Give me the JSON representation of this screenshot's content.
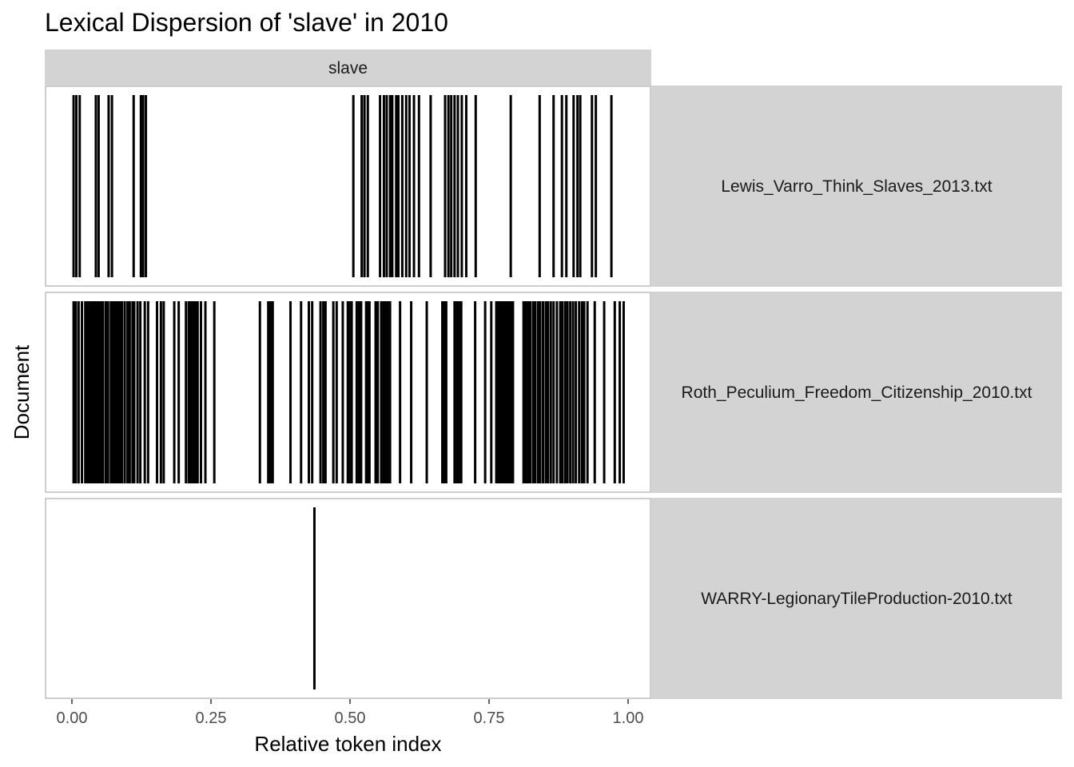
{
  "chart_data": {
    "type": "lexical-dispersion",
    "title": "Lexical Dispersion of 'slave' in 2010",
    "xlabel": "Relative token index",
    "ylabel": "Document",
    "facet_column": "slave",
    "xlim": [
      0,
      1
    ],
    "x_ticks": [
      0,
      0.25,
      0.5,
      0.75,
      1
    ],
    "x_tick_labels": [
      "0.00",
      "0.25",
      "0.50",
      "0.75",
      "1.00"
    ],
    "grid": false,
    "mark_color": "#000000",
    "strip_color": "#d3d3d3",
    "panel_border_color": "#bdbdbd",
    "documents": [
      {
        "name": "Lewis_Varro_Think_Slaves_2013.txt",
        "positions": [
          0.003,
          0.008,
          0.014,
          0.043,
          0.048,
          0.066,
          0.072,
          0.111,
          0.124,
          0.128,
          0.133,
          0.506,
          0.521,
          0.526,
          0.532,
          0.554,
          0.561,
          0.566,
          0.572,
          0.576,
          0.583,
          0.587,
          0.594,
          0.601,
          0.607,
          0.615,
          0.624,
          0.645,
          0.671,
          0.677,
          0.682,
          0.688,
          0.694,
          0.701,
          0.709,
          0.726,
          0.789,
          0.841,
          0.866,
          0.881,
          0.889,
          0.902,
          0.909,
          0.914,
          0.935,
          0.942,
          0.97
        ]
      },
      {
        "name": "Roth_Peculium_Freedom_Citizenship_2010.txt",
        "positions": [
          0.003,
          0.007,
          0.012,
          0.018,
          0.024,
          0.028,
          0.031,
          0.035,
          0.038,
          0.041,
          0.044,
          0.047,
          0.05,
          0.053,
          0.056,
          0.061,
          0.065,
          0.07,
          0.072,
          0.074,
          0.076,
          0.078,
          0.08,
          0.082,
          0.084,
          0.086,
          0.088,
          0.09,
          0.095,
          0.1,
          0.104,
          0.109,
          0.112,
          0.118,
          0.123,
          0.131,
          0.137,
          0.153,
          0.16,
          0.165,
          0.184,
          0.192,
          0.205,
          0.21,
          0.214,
          0.218,
          0.222,
          0.226,
          0.232,
          0.24,
          0.256,
          0.338,
          0.353,
          0.357,
          0.361,
          0.393,
          0.412,
          0.426,
          0.432,
          0.447,
          0.452,
          0.456,
          0.47,
          0.476,
          0.487,
          0.496,
          0.499,
          0.503,
          0.512,
          0.516,
          0.52,
          0.529,
          0.532,
          0.535,
          0.546,
          0.55,
          0.556,
          0.56,
          0.563,
          0.566,
          0.568,
          0.572,
          0.59,
          0.61,
          0.638,
          0.666,
          0.67,
          0.673,
          0.688,
          0.692,
          0.696,
          0.7,
          0.725,
          0.743,
          0.754,
          0.763,
          0.766,
          0.769,
          0.772,
          0.775,
          0.778,
          0.781,
          0.784,
          0.787,
          0.79,
          0.793,
          0.812,
          0.816,
          0.82,
          0.824,
          0.829,
          0.833,
          0.838,
          0.842,
          0.847,
          0.852,
          0.856,
          0.861,
          0.866,
          0.872,
          0.878,
          0.882,
          0.887,
          0.891,
          0.896,
          0.901,
          0.906,
          0.912,
          0.917,
          0.921,
          0.927,
          0.94,
          0.957,
          0.976,
          0.985,
          0.992
        ]
      },
      {
        "name": "WARRY-LegionaryTileProduction-2010.txt",
        "positions": [
          0.436
        ]
      }
    ]
  }
}
